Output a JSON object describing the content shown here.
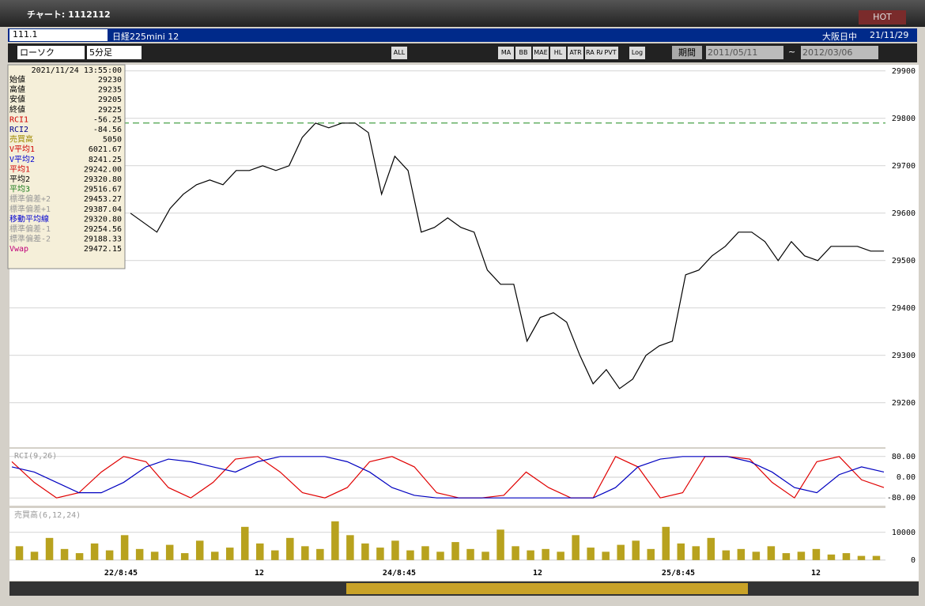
{
  "window": {
    "title": "チャート: 1112112",
    "hot": "HOT"
  },
  "symbol_bar": {
    "code": "111.1",
    "name": "日経225mini 12",
    "market": "大阪日中",
    "date": "21/11/29"
  },
  "toolbar": {
    "chart_type": "ローソク",
    "interval": "5分足",
    "buttons": [
      "ALL",
      "MA",
      "BB",
      "MAE",
      "HL",
      "ATR",
      "RA RA",
      "PVT",
      "Log"
    ],
    "period_label": "期間",
    "from": "2011/05/11",
    "tilde": "~",
    "to": "2012/03/06"
  },
  "info_panel": {
    "datetime": "2021/11/24  13:55:00",
    "rows": [
      [
        "始値",
        "29230"
      ],
      [
        "高値",
        "29235"
      ],
      [
        "安値",
        "29205"
      ],
      [
        "終値",
        "29225"
      ],
      [
        "RCI1",
        "-56.25"
      ],
      [
        "RCI2",
        "-84.56"
      ],
      [
        "売買高",
        "5050"
      ],
      [
        "V平均1",
        "6021.67"
      ],
      [
        "V平均2",
        "8241.25"
      ],
      [
        "平均1",
        "29242.00"
      ],
      [
        "平均2",
        "29320.80"
      ],
      [
        "平均3",
        "29516.67"
      ],
      [
        "標準偏差+2",
        "29453.27"
      ],
      [
        "標準偏差+1",
        "29387.04"
      ],
      [
        "移動平均線",
        "29320.80"
      ],
      [
        "標準偏差-1",
        "29254.56"
      ],
      [
        "標準偏差-2",
        "29188.33"
      ],
      [
        "Vwap",
        "29472.15"
      ]
    ]
  },
  "x_labels": [
    "22/8:45",
    "12",
    "24/8:45",
    "12",
    "25/8:45",
    "12"
  ],
  "chart_data": [
    {
      "type": "line",
      "ylim": [
        29108,
        29913
      ],
      "yticks": [
        29900,
        29800,
        29700,
        29600,
        29500,
        29400,
        29300,
        29200
      ],
      "dashed_level": 29790,
      "series": [
        {
          "color": "#000000",
          "values": [
            29600,
            29580,
            29560,
            29610,
            29640,
            29660,
            29670,
            29660,
            29690,
            29690,
            29700,
            29690,
            29700,
            29760,
            29790,
            29780,
            29790,
            29790,
            29770,
            29640,
            29720,
            29690,
            29560,
            29570,
            29590,
            29570,
            29560,
            29480,
            29450,
            29450,
            29330,
            29380,
            29390,
            29370,
            29300,
            29240,
            29270,
            29230,
            29250,
            29300,
            29320,
            29330,
            29470,
            29480,
            29510,
            29530,
            29560,
            29560,
            29540,
            29500,
            29540,
            29510,
            29500,
            29530,
            29530,
            29530,
            29520,
            29520
          ]
        }
      ]
    },
    {
      "type": "line",
      "title": "RCI(9,26)",
      "ylim": [
        -110,
        110
      ],
      "yticks": [
        {
          "value": 80,
          "label": "80.00"
        },
        {
          "value": 0,
          "label": "0.00"
        },
        {
          "value": -80,
          "label": "-80.00"
        }
      ],
      "series": [
        {
          "color": "#e00000",
          "values": [
            60,
            -20,
            -80,
            -60,
            20,
            80,
            60,
            -40,
            -80,
            -20,
            70,
            80,
            20,
            -60,
            -80,
            -40,
            60,
            80,
            40,
            -60,
            -80,
            -80,
            -70,
            20,
            -40,
            -80,
            -80,
            80,
            40,
            -80,
            -60,
            80,
            80,
            70,
            -20,
            -80,
            60,
            80,
            -10,
            -40
          ]
        },
        {
          "color": "#0000c0",
          "values": [
            40,
            20,
            -20,
            -60,
            -60,
            -20,
            40,
            70,
            60,
            40,
            20,
            60,
            80,
            80,
            80,
            60,
            20,
            -40,
            -70,
            -80,
            -80,
            -80,
            -80,
            -80,
            -80,
            -80,
            -80,
            -40,
            40,
            70,
            80,
            80,
            80,
            60,
            20,
            -40,
            -60,
            10,
            40,
            20
          ]
        }
      ]
    },
    {
      "type": "bar",
      "title": "売買高(6,12,24)",
      "ylim": [
        -900,
        18800
      ],
      "yticks": [
        10000,
        0
      ],
      "color": "#b8a21e",
      "values": [
        5000,
        3000,
        8000,
        4000,
        2500,
        6000,
        3500,
        9000,
        4000,
        3000,
        5500,
        2500,
        7000,
        3000,
        4500,
        12000,
        6000,
        3500,
        8000,
        5000,
        4000,
        14000,
        9000,
        6000,
        4500,
        7000,
        3500,
        5000,
        3000,
        6500,
        4000,
        3000,
        11000,
        5000,
        3500,
        4000,
        3000,
        9000,
        4500,
        3000,
        5500,
        7000,
        4000,
        12000,
        6000,
        5000,
        8000,
        3500,
        4000,
        3000,
        5000,
        2500,
        3000,
        4000,
        2000,
        2500,
        1500,
        1500
      ]
    }
  ]
}
